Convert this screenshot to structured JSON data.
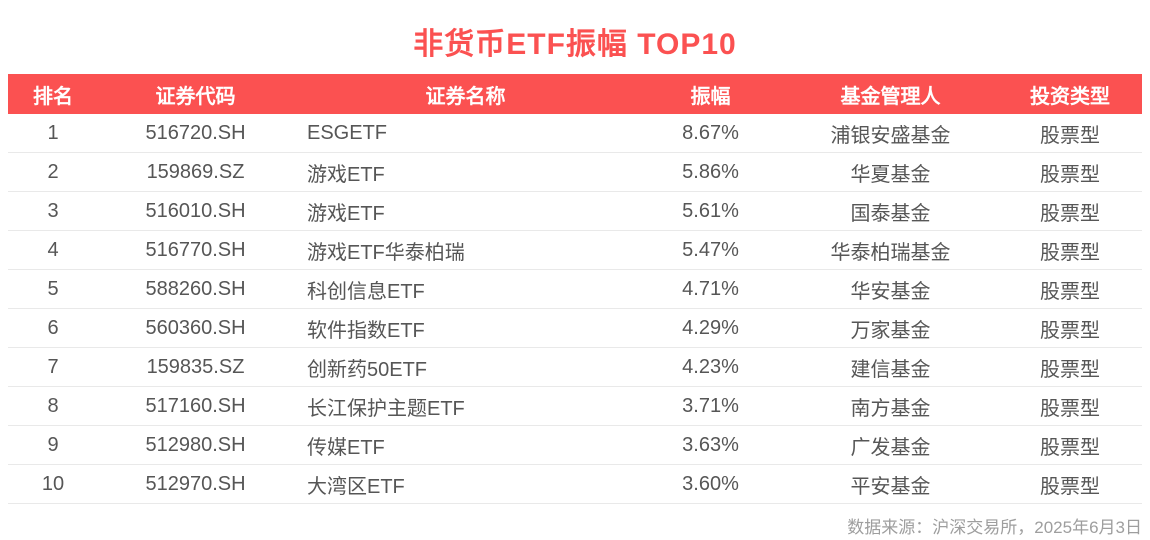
{
  "title": "非货币ETF振幅 TOP10",
  "colors": {
    "accent": "#FB5151",
    "header_text": "#FFFFFF",
    "body_text": "#565656",
    "row_divider": "#E9E9E9",
    "source_text": "#9E9E9E"
  },
  "chart_data": {
    "type": "table",
    "title": "非货币ETF振幅 TOP10",
    "columns": [
      "排名",
      "证券代码",
      "证券名称",
      "振幅",
      "基金管理人",
      "投资类型"
    ],
    "rows": [
      {
        "rank": "1",
        "code": "516720.SH",
        "name": "ESGETF",
        "amplitude": "8.67%",
        "manager": "浦银安盛基金",
        "type": "股票型"
      },
      {
        "rank": "2",
        "code": "159869.SZ",
        "name": "游戏ETF",
        "amplitude": "5.86%",
        "manager": "华夏基金",
        "type": "股票型"
      },
      {
        "rank": "3",
        "code": "516010.SH",
        "name": "游戏ETF",
        "amplitude": "5.61%",
        "manager": "国泰基金",
        "type": "股票型"
      },
      {
        "rank": "4",
        "code": "516770.SH",
        "name": "游戏ETF华泰柏瑞",
        "amplitude": "5.47%",
        "manager": "华泰柏瑞基金",
        "type": "股票型"
      },
      {
        "rank": "5",
        "code": "588260.SH",
        "name": "科创信息ETF",
        "amplitude": "4.71%",
        "manager": "华安基金",
        "type": "股票型"
      },
      {
        "rank": "6",
        "code": "560360.SH",
        "name": "软件指数ETF",
        "amplitude": "4.29%",
        "manager": "万家基金",
        "type": "股票型"
      },
      {
        "rank": "7",
        "code": "159835.SZ",
        "name": "创新药50ETF",
        "amplitude": "4.23%",
        "manager": "建信基金",
        "type": "股票型"
      },
      {
        "rank": "8",
        "code": "517160.SH",
        "name": "长江保护主题ETF",
        "amplitude": "3.71%",
        "manager": "南方基金",
        "type": "股票型"
      },
      {
        "rank": "9",
        "code": "512980.SH",
        "name": "传媒ETF",
        "amplitude": "3.63%",
        "manager": "广发基金",
        "type": "股票型"
      },
      {
        "rank": "10",
        "code": "512970.SH",
        "name": "大湾区ETF",
        "amplitude": "3.60%",
        "manager": "平安基金",
        "type": "股票型"
      }
    ]
  },
  "footer": {
    "source": "数据来源：沪深交易所，2025年6月3日"
  }
}
